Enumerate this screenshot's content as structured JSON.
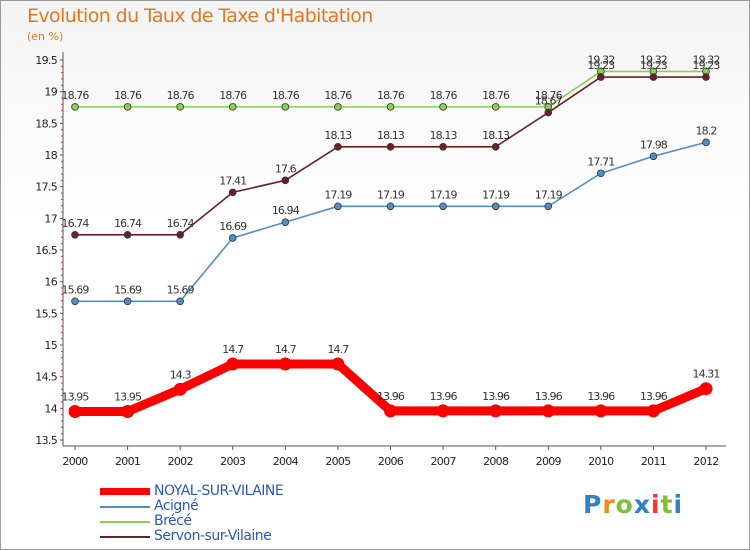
{
  "chart_data": {
    "type": "line",
    "title": "Evolution du Taux de Taxe d'Habitation",
    "subtitle": "(en %)",
    "x": [
      "2000",
      "2001",
      "2002",
      "2003",
      "2004",
      "2005",
      "2006",
      "2007",
      "2008",
      "2009",
      "2010",
      "2011",
      "2012"
    ],
    "ylim": [
      13.5,
      19.5
    ],
    "yticks": [
      "13.5",
      "14",
      "14.5",
      "15",
      "15.5",
      "16",
      "16.5",
      "17",
      "17.5",
      "18",
      "18.5",
      "19",
      "19.5"
    ],
    "grid": false,
    "legend_position": "bottom-left",
    "series": [
      {
        "name": "NOYAL-SUR-VILAINE",
        "color": "#ff0000",
        "values": [
          13.95,
          13.95,
          14.3,
          14.7,
          14.7,
          14.7,
          13.96,
          13.96,
          13.96,
          13.96,
          13.96,
          13.96,
          14.31
        ],
        "labels": [
          "13.95",
          "13.95",
          "14.3",
          "14.7",
          "14.7",
          "14.7",
          "13.96",
          "13.96",
          "13.96",
          "13.96",
          "13.96",
          "13.96",
          "14.31"
        ]
      },
      {
        "name": "Acigné",
        "color": "#4f8fc8",
        "values": [
          15.69,
          15.69,
          15.69,
          16.69,
          16.94,
          17.19,
          17.19,
          17.19,
          17.19,
          17.19,
          17.71,
          17.98,
          18.2
        ],
        "labels": [
          "15.69",
          "15.69",
          "15.69",
          "16.69",
          "16.94",
          "17.19",
          "17.19",
          "17.19",
          "17.19",
          "17.19",
          "17.71",
          "17.98",
          "18.2"
        ]
      },
      {
        "name": "Brécé",
        "color": "#88d24f",
        "values": [
          18.76,
          18.76,
          18.76,
          18.76,
          18.76,
          18.76,
          18.76,
          18.76,
          18.76,
          18.76,
          19.32,
          19.32,
          19.32
        ],
        "labels": [
          "18.76",
          "18.76",
          "18.76",
          "18.76",
          "18.76",
          "18.76",
          "18.76",
          "18.76",
          "18.76",
          "18.76",
          "19.32",
          "19.32",
          "19.32"
        ]
      },
      {
        "name": "Servon-sur-Vilaine",
        "color": "#6e1f24",
        "values": [
          16.74,
          16.74,
          16.74,
          17.41,
          17.6,
          18.13,
          18.13,
          18.13,
          18.13,
          18.67,
          19.23,
          19.23,
          19.23
        ],
        "labels": [
          "16.74",
          "16.74",
          "16.74",
          "17.41",
          "17.6",
          "18.13",
          "18.13",
          "18.13",
          "18.13",
          "18.67",
          "19.23",
          "19.23",
          "19.23"
        ]
      }
    ]
  },
  "brand": {
    "text": "Proxiti",
    "colors": [
      "#2f82c8",
      "#f08b1e",
      "#7fbd3a",
      "#2f82c8",
      "#e83a2e",
      "#7fbd3a",
      "#2f82c8"
    ]
  }
}
